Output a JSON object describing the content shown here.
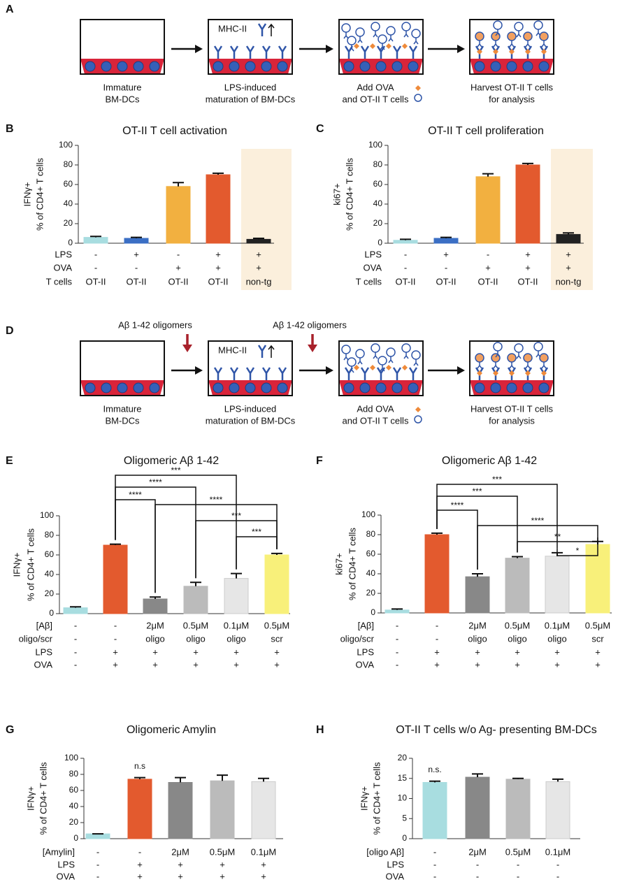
{
  "diagram_a": {
    "label": "A",
    "mhc": "MHC-II",
    "captions": [
      [
        "Immature",
        "BM-DCs"
      ],
      [
        "LPS-induced",
        "maturation of BM-DCs"
      ],
      [
        "Add OVA",
        "and OT-II  T cells"
      ],
      [
        "Harvest OT-II  T cells",
        "for analysis"
      ]
    ]
  },
  "diagram_d": {
    "label": "D",
    "mhc": "MHC-II",
    "treatments": [
      "Aβ 1-42 oligomers",
      "Aβ 1-42 oligomers"
    ],
    "captions": [
      [
        "Immature",
        "BM-DCs"
      ],
      [
        "LPS-induced",
        "maturation of BM-DCs"
      ],
      [
        "Add OVA",
        "and OT-II  T cells"
      ],
      [
        "Harvest OT-II  T cells",
        "for analysis"
      ]
    ]
  },
  "chart_data": [
    {
      "type": "bar",
      "label": "B",
      "title": "OT-II T cell activation",
      "ylabel": [
        "IFNγ+",
        "% of CD4+ T cells"
      ],
      "ylim": [
        0,
        100
      ],
      "yticks": [
        0,
        20,
        40,
        60,
        80,
        100
      ],
      "values": [
        6,
        5,
        58,
        70,
        4
      ],
      "errors": [
        1,
        1,
        4,
        1.5,
        1
      ],
      "colors": [
        "#a8dde0",
        "#3b6fc4",
        "#f2b040",
        "#e35a2e",
        "#222222"
      ],
      "rows": [
        {
          "label": "LPS",
          "values": [
            "-",
            "+",
            "-",
            "+",
            "+"
          ]
        },
        {
          "label": "OVA",
          "values": [
            "-",
            "-",
            "+",
            "+",
            "+"
          ]
        },
        {
          "label": "T cells",
          "values": [
            "OT-II",
            "OT-II",
            "OT-II",
            "OT-II",
            "non-tg"
          ]
        }
      ]
    },
    {
      "type": "bar",
      "label": "C",
      "title": "OT-II T cell proliferation",
      "ylabel": [
        "ki67+",
        "% of CD4+ T cells"
      ],
      "ylim": [
        0,
        100
      ],
      "yticks": [
        0,
        20,
        40,
        60,
        80,
        100
      ],
      "values": [
        3,
        5,
        68,
        80,
        9
      ],
      "errors": [
        1,
        1,
        3,
        1.5,
        1.5
      ],
      "colors": [
        "#a8dde0",
        "#3b6fc4",
        "#f2b040",
        "#e35a2e",
        "#222222"
      ],
      "rows": [
        {
          "label": "LPS",
          "values": [
            "-",
            "+",
            "-",
            "+",
            "+"
          ]
        },
        {
          "label": "OVA",
          "values": [
            "-",
            "-",
            "+",
            "+",
            "+"
          ]
        },
        {
          "label": "T cells",
          "values": [
            "OT-II",
            "OT-II",
            "OT-II",
            "OT-II",
            "non-tg"
          ]
        }
      ]
    },
    {
      "type": "bar",
      "label": "E",
      "title": "Oligomeric Aβ 1-42",
      "ylabel": [
        "IFNγ+",
        "% of CD4+ T cells"
      ],
      "ylim": [
        0,
        100
      ],
      "yticks": [
        0,
        20,
        40,
        60,
        80,
        100
      ],
      "values": [
        6,
        70,
        15,
        28,
        36,
        60
      ],
      "errors": [
        1,
        1,
        2,
        4,
        5,
        1.5
      ],
      "colors": [
        "#a8dde0",
        "#e35a2e",
        "#888888",
        "#bbbbbb",
        "#e6e6e6",
        "#f8f07a"
      ],
      "annotations": [
        "***",
        "****",
        "****",
        "****",
        "***",
        "***"
      ],
      "rows": [
        {
          "label": "[Aβ]",
          "values": [
            "-",
            "-",
            "2μM",
            "0.5μM",
            "0.1μM",
            "0.5μM"
          ]
        },
        {
          "label": "oligo/scr",
          "values": [
            "-",
            "-",
            "oligo",
            "oligo",
            "oligo",
            "scr"
          ]
        },
        {
          "label": "LPS",
          "values": [
            "-",
            "+",
            "+",
            "+",
            "+",
            "+"
          ]
        },
        {
          "label": "OVA",
          "values": [
            "-",
            "+",
            "+",
            "+",
            "+",
            "+"
          ]
        }
      ]
    },
    {
      "type": "bar",
      "label": "F",
      "title": "Oligomeric Aβ 1-42",
      "ylabel": [
        "ki67+",
        "% of CD4+ T cells"
      ],
      "ylim": [
        0,
        100
      ],
      "yticks": [
        0,
        20,
        40,
        60,
        80,
        100
      ],
      "values": [
        3,
        80,
        37,
        56,
        58,
        70
      ],
      "errors": [
        1,
        1.5,
        3,
        1.5,
        3.5,
        3
      ],
      "colors": [
        "#a8dde0",
        "#e35a2e",
        "#888888",
        "#bbbbbb",
        "#e6e6e6",
        "#f8f07a"
      ],
      "annotations": [
        "***",
        "***",
        "****",
        "****",
        "**",
        "*"
      ],
      "rows": [
        {
          "label": "[Aβ]",
          "values": [
            "-",
            "-",
            "2μM",
            "0.5μM",
            "0.1μM",
            "0.5μM"
          ]
        },
        {
          "label": "oligo/scr",
          "values": [
            "-",
            "-",
            "oligo",
            "oligo",
            "oligo",
            "scr"
          ]
        },
        {
          "label": "LPS",
          "values": [
            "-",
            "+",
            "+",
            "+",
            "+",
            "+"
          ]
        },
        {
          "label": "OVA",
          "values": [
            "-",
            "+",
            "+",
            "+",
            "+",
            "+"
          ]
        }
      ]
    },
    {
      "type": "bar",
      "label": "G",
      "title": "Oligomeric Amylin",
      "ylabel": [
        "IFNγ+",
        "% of CD4+ T cells"
      ],
      "ylim": [
        0,
        100
      ],
      "yticks": [
        0,
        20,
        40,
        60,
        80,
        100
      ],
      "values": [
        6,
        74,
        70,
        72,
        71
      ],
      "errors": [
        0,
        2,
        6,
        7,
        4
      ],
      "colors": [
        "#a8dde0",
        "#e35a2e",
        "#888888",
        "#bbbbbb",
        "#e6e6e6"
      ],
      "annotations": [
        "n.s"
      ],
      "rows": [
        {
          "label": "[Amylin]",
          "values": [
            "-",
            "-",
            "2μM",
            "0.5μM",
            "0.1μM"
          ]
        },
        {
          "label": "LPS",
          "values": [
            "-",
            "+",
            "+",
            "+",
            "+"
          ]
        },
        {
          "label": "OVA",
          "values": [
            "-",
            "+",
            "+",
            "+",
            "+"
          ]
        }
      ]
    },
    {
      "type": "bar",
      "label": "H",
      "title": "OT-II T cells w/o Ag- presenting BM-DCs",
      "ylabel": [
        "IFNγ+",
        "% of CD4+ T cells"
      ],
      "ylim": [
        0,
        20
      ],
      "yticks": [
        0,
        5,
        10,
        15,
        20
      ],
      "values": [
        14,
        15.3,
        14.8,
        14.2
      ],
      "errors": [
        0.3,
        0.8,
        0.2,
        0.6
      ],
      "colors": [
        "#a8dde0",
        "#888888",
        "#bbbbbb",
        "#e6e6e6"
      ],
      "annotations": [
        "n.s."
      ],
      "rows": [
        {
          "label": "[oligo Aβ]",
          "values": [
            "-",
            "2μM",
            "0.5μM",
            "0.1μM"
          ]
        },
        {
          "label": "LPS",
          "values": [
            "-",
            "-",
            "-",
            "-"
          ]
        },
        {
          "label": "OVA",
          "values": [
            "-",
            "-",
            "-",
            "-"
          ]
        }
      ]
    }
  ]
}
